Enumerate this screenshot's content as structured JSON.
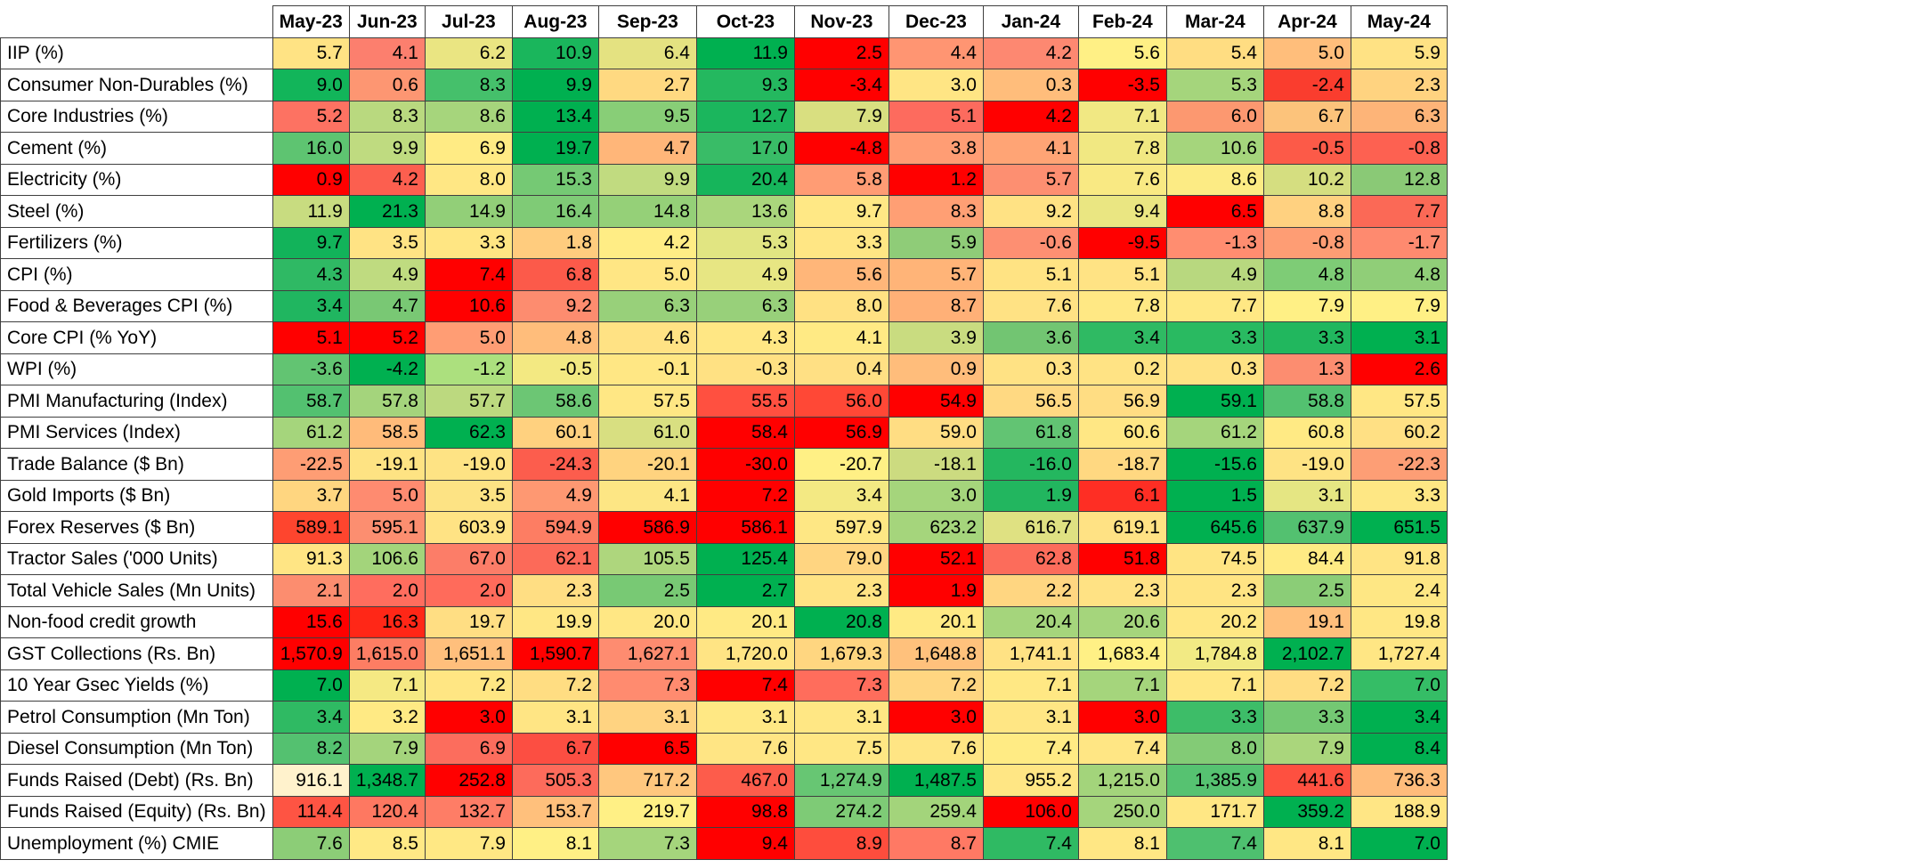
{
  "chart_data": {
    "type": "heatmap",
    "columns": [
      "May-23",
      "Jun-23",
      "Jul-23",
      "Aug-23",
      "Sep-23",
      "Oct-23",
      "Nov-23",
      "Dec-23",
      "Jan-24",
      "Feb-24",
      "Mar-24",
      "Apr-24",
      "May-24"
    ],
    "rows": [
      {
        "label": "IIP (%)",
        "values": [
          "5.7",
          "4.1",
          "6.2",
          "10.9",
          "6.4",
          "11.9",
          "2.5",
          "4.4",
          "4.2",
          "5.6",
          "5.4",
          "5.0",
          "5.9"
        ]
      },
      {
        "label": "Consumer Non-Durables (%)",
        "values": [
          "9.0",
          "0.6",
          "8.3",
          "9.9",
          "2.7",
          "9.3",
          "-3.4",
          "3.0",
          "0.3",
          "-3.5",
          "5.3",
          "-2.4",
          "2.3"
        ]
      },
      {
        "label": "Core Industries (%)",
        "values": [
          "5.2",
          "8.3",
          "8.6",
          "13.4",
          "9.5",
          "12.7",
          "7.9",
          "5.1",
          "4.2",
          "7.1",
          "6.0",
          "6.7",
          "6.3"
        ]
      },
      {
        "label": "Cement (%)",
        "values": [
          "16.0",
          "9.9",
          "6.9",
          "19.7",
          "4.7",
          "17.0",
          "-4.8",
          "3.8",
          "4.1",
          "7.8",
          "10.6",
          "-0.5",
          "-0.8"
        ]
      },
      {
        "label": "Electricity (%)",
        "values": [
          "0.9",
          "4.2",
          "8.0",
          "15.3",
          "9.9",
          "20.4",
          "5.8",
          "1.2",
          "5.7",
          "7.6",
          "8.6",
          "10.2",
          "12.8"
        ]
      },
      {
        "label": "Steel (%)",
        "values": [
          "11.9",
          "21.3",
          "14.9",
          "16.4",
          "14.8",
          "13.6",
          "9.7",
          "8.3",
          "9.2",
          "9.4",
          "6.5",
          "8.8",
          "7.7"
        ]
      },
      {
        "label": "Fertilizers (%)",
        "values": [
          "9.7",
          "3.5",
          "3.3",
          "1.8",
          "4.2",
          "5.3",
          "3.3",
          "5.9",
          "-0.6",
          "-9.5",
          "-1.3",
          "-0.8",
          "-1.7"
        ]
      },
      {
        "label": "CPI (%)",
        "values": [
          "4.3",
          "4.9",
          "7.4",
          "6.8",
          "5.0",
          "4.9",
          "5.6",
          "5.7",
          "5.1",
          "5.1",
          "4.9",
          "4.8",
          "4.8"
        ]
      },
      {
        "label": "Food & Beverages CPI (%)",
        "values": [
          "3.4",
          "4.7",
          "10.6",
          "9.2",
          "6.3",
          "6.3",
          "8.0",
          "8.7",
          "7.6",
          "7.8",
          "7.7",
          "7.9",
          "7.9"
        ]
      },
      {
        "label": "Core CPI (% YoY)",
        "values": [
          "5.1",
          "5.2",
          "5.0",
          "4.8",
          "4.6",
          "4.3",
          "4.1",
          "3.9",
          "3.6",
          "3.4",
          "3.3",
          "3.3",
          "3.1"
        ]
      },
      {
        "label": "WPI (%)",
        "values": [
          "-3.6",
          "-4.2",
          "-1.2",
          "-0.5",
          "-0.1",
          "-0.3",
          "0.4",
          "0.9",
          "0.3",
          "0.2",
          "0.3",
          "1.3",
          "2.6"
        ]
      },
      {
        "label": "PMI Manufacturing (Index)",
        "values": [
          "58.7",
          "57.8",
          "57.7",
          "58.6",
          "57.5",
          "55.5",
          "56.0",
          "54.9",
          "56.5",
          "56.9",
          "59.1",
          "58.8",
          "57.5"
        ]
      },
      {
        "label": "PMI Services (Index)",
        "values": [
          "61.2",
          "58.5",
          "62.3",
          "60.1",
          "61.0",
          "58.4",
          "56.9",
          "59.0",
          "61.8",
          "60.6",
          "61.2",
          "60.8",
          "60.2"
        ]
      },
      {
        "label": "Trade Balance ($ Bn)",
        "values": [
          "-22.5",
          "-19.1",
          "-19.0",
          "-24.3",
          "-20.1",
          "-30.0",
          "-20.7",
          "-18.1",
          "-16.0",
          "-18.7",
          "-15.6",
          "-19.0",
          "-22.3"
        ]
      },
      {
        "label": "Gold Imports ($ Bn)",
        "values": [
          "3.7",
          "5.0",
          "3.5",
          "4.9",
          "4.1",
          "7.2",
          "3.4",
          "3.0",
          "1.9",
          "6.1",
          "1.5",
          "3.1",
          "3.3"
        ]
      },
      {
        "label": "Forex Reserves ($ Bn)",
        "values": [
          "589.1",
          "595.1",
          "603.9",
          "594.9",
          "586.9",
          "586.1",
          "597.9",
          "623.2",
          "616.7",
          "619.1",
          "645.6",
          "637.9",
          "651.5"
        ]
      },
      {
        "label": "Tractor Sales ('000 Units)",
        "values": [
          "91.3",
          "106.6",
          "67.0",
          "62.1",
          "105.5",
          "125.4",
          "79.0",
          "52.1",
          "62.8",
          "51.8",
          "74.5",
          "84.4",
          "91.8"
        ]
      },
      {
        "label": "Total Vehicle Sales (Mn Units)",
        "values": [
          "2.1",
          "2.0",
          "2.0",
          "2.3",
          "2.5",
          "2.7",
          "2.3",
          "1.9",
          "2.2",
          "2.3",
          "2.3",
          "2.5",
          "2.4"
        ]
      },
      {
        "label": "Non-food credit growth",
        "values": [
          "15.6",
          "16.3",
          "19.7",
          "19.9",
          "20.0",
          "20.1",
          "20.8",
          "20.1",
          "20.4",
          "20.6",
          "20.2",
          "19.1",
          "19.8"
        ]
      },
      {
        "label": "GST Collections (Rs. Bn)",
        "values": [
          "1,570.9",
          "1,615.0",
          "1,651.1",
          "1,590.7",
          "1,627.1",
          "1,720.0",
          "1,679.3",
          "1,648.8",
          "1,741.1",
          "1,683.4",
          "1,784.8",
          "2,102.7",
          "1,727.4"
        ]
      },
      {
        "label": "10 Year Gsec Yields (%)",
        "values": [
          "7.0",
          "7.1",
          "7.2",
          "7.2",
          "7.3",
          "7.4",
          "7.3",
          "7.2",
          "7.1",
          "7.1",
          "7.1",
          "7.2",
          "7.0"
        ]
      },
      {
        "label": "Petrol Consumption (Mn Ton)",
        "values": [
          "3.4",
          "3.2",
          "3.0",
          "3.1",
          "3.1",
          "3.1",
          "3.1",
          "3.0",
          "3.1",
          "3.0",
          "3.3",
          "3.3",
          "3.4"
        ]
      },
      {
        "label": "Diesel Consumption (Mn Ton)",
        "values": [
          "8.2",
          "7.9",
          "6.9",
          "6.7",
          "6.5",
          "7.6",
          "7.5",
          "7.6",
          "7.4",
          "7.4",
          "8.0",
          "7.9",
          "8.4"
        ]
      },
      {
        "label": "Funds Raised (Debt) (Rs. Bn)",
        "values": [
          "916.1",
          "1,348.7",
          "252.8",
          "505.3",
          "717.2",
          "467.0",
          "1,274.9",
          "1,487.5",
          "955.2",
          "1,215.0",
          "1,385.9",
          "441.6",
          "736.3"
        ]
      },
      {
        "label": "Funds Raised (Equity) (Rs. Bn)",
        "values": [
          "114.4",
          "120.4",
          "132.7",
          "153.7",
          "219.7",
          "98.8",
          "274.2",
          "259.4",
          "106.0",
          "250.0",
          "171.7",
          "359.2",
          "188.9"
        ]
      },
      {
        "label": "Unemployment (%) CMIE",
        "values": [
          "7.6",
          "8.5",
          "7.9",
          "8.1",
          "7.3",
          "9.4",
          "8.9",
          "8.7",
          "7.4",
          "8.1",
          "7.4",
          "8.1",
          "7.0"
        ]
      }
    ],
    "color_scale": {
      "low": "#ff0000",
      "mid": "#ffeb84",
      "high": "#00b050"
    },
    "cell_colors": [
      [
        "#ffe384",
        "#fc7f6e",
        "#eae582",
        "#1ab65c",
        "#e4e281",
        "#00b050",
        "#ff0000",
        "#ff9572",
        "#fd8871",
        "#fff085",
        "#ffdd82",
        "#ffbe7b",
        "#ffe284"
      ],
      [
        "#12b55a",
        "#fd9672",
        "#45c06b",
        "#00b050",
        "#ffd981",
        "#24b85f",
        "#ff0000",
        "#ffe584",
        "#ffbd7b",
        "#ff0000",
        "#a5d57c",
        "#fa3d2e",
        "#ffd380"
      ],
      [
        "#fd7262",
        "#b9d97f",
        "#a6d57c",
        "#00b050",
        "#88ce77",
        "#1bb65d",
        "#d9df80",
        "#fd6b5e",
        "#ff0000",
        "#f1e883",
        "#fc9870",
        "#fcc37b",
        "#fdb478"
      ],
      [
        "#5ec471",
        "#bfdb80",
        "#ffeb84",
        "#00b050",
        "#ffb679",
        "#39bc67",
        "#ff0000",
        "#ff9d74",
        "#ffa475",
        "#f1e882",
        "#a5d57c",
        "#fc5a48",
        "#fd6151"
      ],
      [
        "#ff0000",
        "#fc5f4f",
        "#ffe784",
        "#75c974",
        "#c1db80",
        "#16b55b",
        "#ff9c74",
        "#ff0000",
        "#fd8f71",
        "#f9e983",
        "#fceb84",
        "#d5de80",
        "#8ac976"
      ],
      [
        "#c8dc80",
        "#00b050",
        "#92cf78",
        "#7fcb76",
        "#95d078",
        "#aad67c",
        "#ffe885",
        "#ff9f74",
        "#ffe284",
        "#eae682",
        "#ff0000",
        "#ffd180",
        "#fb6956"
      ],
      [
        "#12b35a",
        "#ffe384",
        "#ffe683",
        "#ffcc7e",
        "#ffed85",
        "#e1e582",
        "#ffe684",
        "#8fcc78",
        "#fd8f72",
        "#ff0000",
        "#ff8d70",
        "#fe9d74",
        "#fe8a6f"
      ],
      [
        "#2fb964",
        "#bfdb80",
        "#ff0000",
        "#fc5a4a",
        "#ffe684",
        "#e7e683",
        "#ffb679",
        "#ffb478",
        "#ffe383",
        "#ffe384",
        "#b8d87f",
        "#7ecc76",
        "#90ce78"
      ],
      [
        "#20b660",
        "#79c874",
        "#ff0000",
        "#fd8c6f",
        "#98d07a",
        "#98d07a",
        "#ffe183",
        "#ffb077",
        "#ffe284",
        "#ffe884",
        "#ffe884",
        "#fff085",
        "#fff085"
      ],
      [
        "#ff0000",
        "#ff0000",
        "#ff9d74",
        "#ffbd7b",
        "#ffe284",
        "#ffe784",
        "#ffea84",
        "#c9dc80",
        "#72c572",
        "#2fba63",
        "#29ba61",
        "#21b75e",
        "#00b050"
      ],
      [
        "#62c472",
        "#00b050",
        "#ace07e",
        "#f3e982",
        "#ffe784",
        "#ffe183",
        "#ffe084",
        "#ffbd7b",
        "#ffe284",
        "#ffe384",
        "#ffe284",
        "#fc8d70",
        "#ff0000"
      ],
      [
        "#53c170",
        "#a4d47c",
        "#bcd97f",
        "#6cc674",
        "#ffe784",
        "#ff5040",
        "#ff4836",
        "#ff0000",
        "#ffd982",
        "#ffdd83",
        "#00b050",
        "#53c170",
        "#ffe784"
      ],
      [
        "#a5d57c",
        "#ffbb7a",
        "#00b050",
        "#ffd17f",
        "#d8df81",
        "#ff0000",
        "#ff0000",
        "#ffdd83",
        "#62c473",
        "#ffe784",
        "#a5d57c",
        "#ffea84",
        "#ffe084"
      ],
      [
        "#fe9d74",
        "#fee383",
        "#fee384",
        "#fc5d4d",
        "#ffd37f",
        "#ff0000",
        "#fff085",
        "#ccdb80",
        "#24b75f",
        "#ffd881",
        "#00b050",
        "#fee384",
        "#fd9e75"
      ],
      [
        "#ffd680",
        "#fe8b70",
        "#fde384",
        "#fe9872",
        "#fde684",
        "#ff0000",
        "#f3e983",
        "#a5d57c",
        "#22b65f",
        "#fe2e24",
        "#00b050",
        "#e5e683",
        "#fee784"
      ],
      [
        "#fe452e",
        "#fc8e70",
        "#ffe384",
        "#fd7d63",
        "#ff0000",
        "#ff0000",
        "#fee784",
        "#a5d57c",
        "#dfe182",
        "#ffe284",
        "#00b050",
        "#53c170",
        "#00b050"
      ],
      [
        "#ffe584",
        "#a3d47b",
        "#fc7d68",
        "#fc6a59",
        "#aed67d",
        "#00b050",
        "#ffd581",
        "#ff0000",
        "#fc6c5b",
        "#ff0000",
        "#ffe483",
        "#ffeb84",
        "#ffe484"
      ],
      [
        "#fc8d6f",
        "#ff6d5e",
        "#ff6b5b",
        "#ffde83",
        "#78c974",
        "#00b050",
        "#ffe384",
        "#ff0000",
        "#ffd681",
        "#ffe284",
        "#ffe483",
        "#8bcd77",
        "#fee784"
      ],
      [
        "#ff0000",
        "#ff2717",
        "#ffde83",
        "#ffe784",
        "#ffe784",
        "#ffea84",
        "#00b050",
        "#ffea84",
        "#a5d57c",
        "#a5d57c",
        "#ffe784",
        "#ffbf7c",
        "#ffe784"
      ],
      [
        "#ff0000",
        "#fd7d63",
        "#ffbf7c",
        "#ff0000",
        "#fe8c70",
        "#ffe484",
        "#ffd680",
        "#ffc17c",
        "#ffe284",
        "#fff085",
        "#f2ea84",
        "#00b050",
        "#ffe684"
      ],
      [
        "#00b050",
        "#f5e983",
        "#ffe683",
        "#ffdd82",
        "#ff8b6f",
        "#ff0000",
        "#ff6d5c",
        "#ffd681",
        "#ffe884",
        "#a5d57c",
        "#ffe784",
        "#ffdd83",
        "#35bd66"
      ],
      [
        "#2fba63",
        "#ffea84",
        "#ff0000",
        "#ffe584",
        "#ffd381",
        "#ffe884",
        "#ffe784",
        "#ff0000",
        "#ffe684",
        "#ff0000",
        "#3dbd68",
        "#74c873",
        "#00b050"
      ],
      [
        "#54c170",
        "#a4d47c",
        "#fc6d5d",
        "#fc4e42",
        "#ff0000",
        "#ffe584",
        "#ffe784",
        "#ffe584",
        "#ffeb84",
        "#ffe684",
        "#83cb76",
        "#aad67c",
        "#00b050"
      ],
      [
        "#fff2cc",
        "#00b050",
        "#ff0000",
        "#fd6b5b",
        "#ffc77e",
        "#fd5c4b",
        "#67c673",
        "#00b050",
        "#ffe684",
        "#a3d47b",
        "#56c271",
        "#fe5040",
        "#ffbc7b"
      ],
      [
        "#fe5443",
        "#fe7861",
        "#fe7d66",
        "#ffc07c",
        "#fff085",
        "#ff0000",
        "#7ecb76",
        "#a3d47b",
        "#ff0000",
        "#a5d57c",
        "#ffe784",
        "#00b050",
        "#ffe685"
      ],
      [
        "#8ccd77",
        "#ffe985",
        "#ffe884",
        "#fff085",
        "#a5d57c",
        "#ff0000",
        "#fe4d3d",
        "#ff7964",
        "#2fba63",
        "#ffe784",
        "#4ec06f",
        "#ffe784",
        "#00b050"
      ]
    ]
  }
}
